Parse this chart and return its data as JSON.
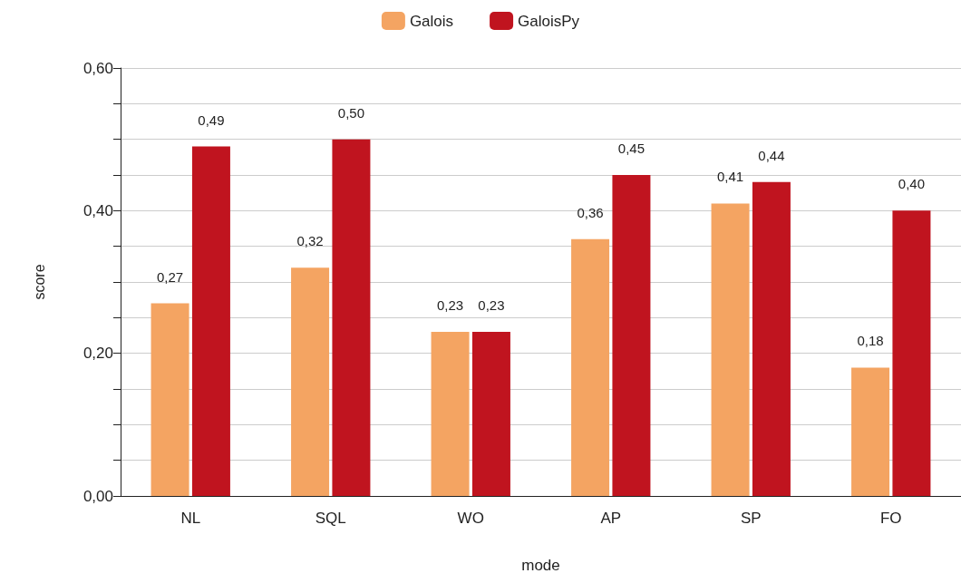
{
  "chart_data": {
    "type": "bar",
    "xlabel": "mode",
    "ylabel": "score",
    "categories": [
      "NL",
      "SQL",
      "WO",
      "AP",
      "SP",
      "FO"
    ],
    "series": [
      {
        "name": "Galois",
        "color": "#f4a462",
        "values": [
          0.27,
          0.32,
          0.23,
          0.36,
          0.41,
          0.18
        ],
        "value_labels": [
          "0,27",
          "0,32",
          "0,23",
          "0,36",
          "0,41",
          "0,18"
        ]
      },
      {
        "name": "GaloisPy",
        "color": "#c0141f",
        "values": [
          0.49,
          0.5,
          0.23,
          0.45,
          0.44,
          0.4
        ],
        "value_labels": [
          "0,49",
          "0,50",
          "0,23",
          "0,45",
          "0,44",
          "0,40"
        ]
      }
    ],
    "ylim": [
      0,
      0.6
    ],
    "yticks": [
      {
        "value": 0,
        "label": "0,00"
      },
      {
        "value": 0.05,
        "label": null
      },
      {
        "value": 0.1,
        "label": null
      },
      {
        "value": 0.15,
        "label": null
      },
      {
        "value": 0.2,
        "label": "0,20"
      },
      {
        "value": 0.25,
        "label": null
      },
      {
        "value": 0.3,
        "label": null
      },
      {
        "value": 0.35,
        "label": null
      },
      {
        "value": 0.4,
        "label": "0,40"
      },
      {
        "value": 0.45,
        "label": null
      },
      {
        "value": 0.5,
        "label": null
      },
      {
        "value": 0.55,
        "label": null
      },
      {
        "value": 0.6,
        "label": "0,60"
      }
    ],
    "grid": "y",
    "legend": "top"
  }
}
